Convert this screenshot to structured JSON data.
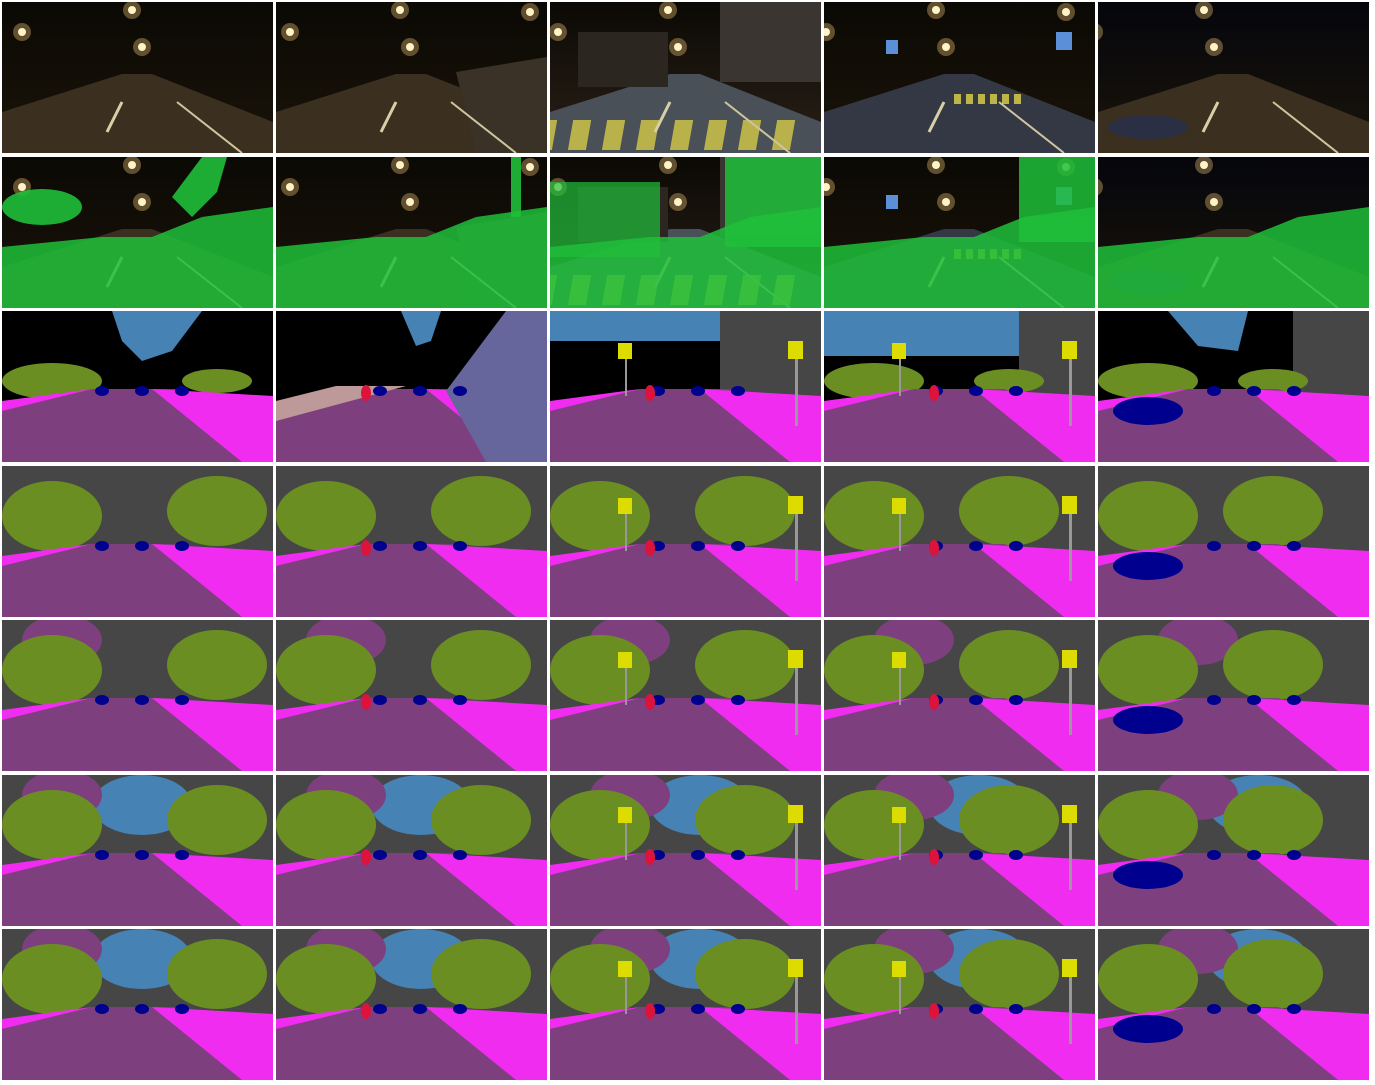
{
  "figure": {
    "columns": 5,
    "rows": [
      {
        "kind": "night-photo",
        "label": ""
      },
      {
        "kind": "green-overlay",
        "label": ""
      },
      {
        "kind": "ground-truth-segmentation",
        "label": ""
      },
      {
        "kind": "prediction-segmentation-a",
        "label": ""
      },
      {
        "kind": "prediction-segmentation-b",
        "label": ""
      },
      {
        "kind": "prediction-segmentation-c",
        "label": ""
      },
      {
        "kind": "prediction-segmentation-d",
        "label": ""
      }
    ]
  },
  "palette": {
    "road": "#7e3f7e",
    "sidewalk": "#f02cf0",
    "building": "#464646",
    "vegetation": "#6b8e23",
    "sky": "#4682b4",
    "car": "#00008e",
    "person": "#dc143c",
    "sign": "#dcdc00",
    "pole": "#999999",
    "terrain": "#98fb98",
    "wall": "#66669c",
    "fence": "#be9999",
    "void": "#000000",
    "overlay_green": "#1fbf3a"
  }
}
